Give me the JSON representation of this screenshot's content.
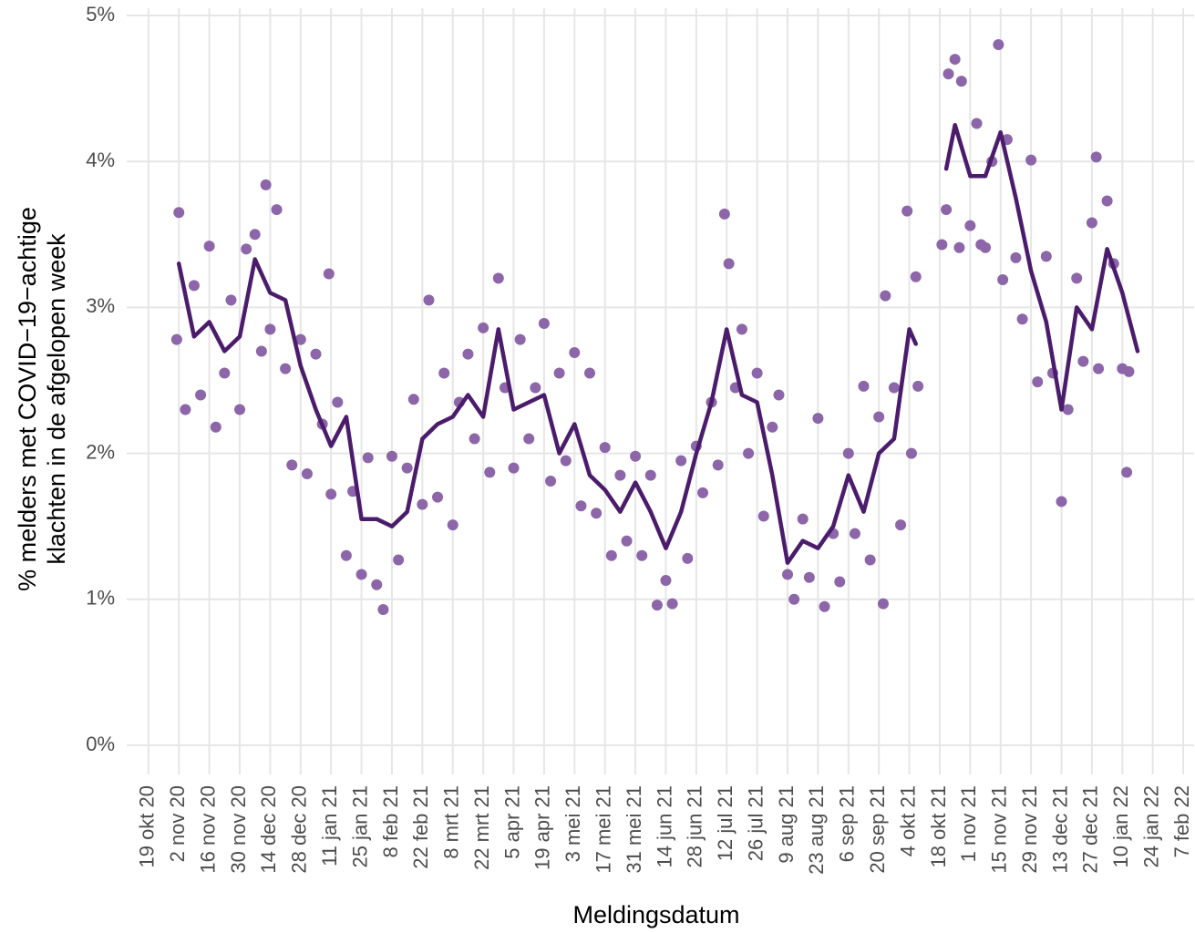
{
  "chart_data": {
    "type": "line",
    "x_label": "Meldingsdatum",
    "y_label": [
      "% melders met COVID−19−achtige",
      "klachten in de afgelopen week"
    ],
    "xlim": [
      "2020-10-09",
      "2022-02-12"
    ],
    "ylim": [
      -0.2,
      5.05
    ],
    "grid": true,
    "yticks": [
      {
        "value": 0,
        "label": "0%"
      },
      {
        "value": 1,
        "label": "1%"
      },
      {
        "value": 2,
        "label": "2%"
      },
      {
        "value": 3,
        "label": "3%"
      },
      {
        "value": 4,
        "label": "4%"
      },
      {
        "value": 5,
        "label": "5%"
      }
    ],
    "xticks": [
      {
        "value": "2020-10-19",
        "label": "19 okt 20"
      },
      {
        "value": "2020-11-02",
        "label": "2 nov 20"
      },
      {
        "value": "2020-11-16",
        "label": "16 nov 20"
      },
      {
        "value": "2020-11-30",
        "label": "30 nov 20"
      },
      {
        "value": "2020-12-14",
        "label": "14 dec 20"
      },
      {
        "value": "2020-12-28",
        "label": "28 dec 20"
      },
      {
        "value": "2021-01-11",
        "label": "11 jan 21"
      },
      {
        "value": "2021-01-25",
        "label": "25 jan 21"
      },
      {
        "value": "2021-02-08",
        "label": "8 feb 21"
      },
      {
        "value": "2021-02-22",
        "label": "22 feb 21"
      },
      {
        "value": "2021-03-08",
        "label": "8 mrt 21"
      },
      {
        "value": "2021-03-22",
        "label": "22 mrt 21"
      },
      {
        "value": "2021-04-05",
        "label": "5 apr 21"
      },
      {
        "value": "2021-04-19",
        "label": "19 apr 21"
      },
      {
        "value": "2021-05-03",
        "label": "3 mei 21"
      },
      {
        "value": "2021-05-17",
        "label": "17 mei 21"
      },
      {
        "value": "2021-05-31",
        "label": "31 mei 21"
      },
      {
        "value": "2021-06-14",
        "label": "14 jun 21"
      },
      {
        "value": "2021-06-28",
        "label": "28 jun 21"
      },
      {
        "value": "2021-07-12",
        "label": "12 jul 21"
      },
      {
        "value": "2021-07-26",
        "label": "26 jul 21"
      },
      {
        "value": "2021-08-09",
        "label": "9 aug 21"
      },
      {
        "value": "2021-08-23",
        "label": "23 aug 21"
      },
      {
        "value": "2021-09-06",
        "label": "6 sep 21"
      },
      {
        "value": "2021-09-20",
        "label": "20 sep 21"
      },
      {
        "value": "2021-10-04",
        "label": "4 okt 21"
      },
      {
        "value": "2021-10-18",
        "label": "18 okt 21"
      },
      {
        "value": "2021-11-01",
        "label": "1 nov 21"
      },
      {
        "value": "2021-11-15",
        "label": "15 nov 21"
      },
      {
        "value": "2021-11-29",
        "label": "29 nov 21"
      },
      {
        "value": "2021-12-13",
        "label": "13 dec 21"
      },
      {
        "value": "2021-12-27",
        "label": "27 dec 21"
      },
      {
        "value": "2022-01-10",
        "label": "10 jan 22"
      },
      {
        "value": "2022-01-24",
        "label": "24 jan 22"
      },
      {
        "value": "2022-02-07",
        "label": "7 feb 22"
      }
    ],
    "series": [
      {
        "type": "scatter",
        "color": "#8c66a8",
        "x": [
          "2020-11-01",
          "2020-11-02",
          "2020-11-05",
          "2020-11-09",
          "2020-11-12",
          "2020-11-16",
          "2020-11-19",
          "2020-11-23",
          "2020-11-26",
          "2020-11-30",
          "2020-12-03",
          "2020-12-07",
          "2020-12-10",
          "2020-12-12",
          "2020-12-14",
          "2020-12-17",
          "2020-12-21",
          "2020-12-24",
          "2020-12-28",
          "2020-12-31",
          "2021-01-04",
          "2021-01-07",
          "2021-01-10",
          "2021-01-11",
          "2021-01-14",
          "2021-01-18",
          "2021-01-21",
          "2021-01-25",
          "2021-01-28",
          "2021-02-01",
          "2021-02-04",
          "2021-02-08",
          "2021-02-11",
          "2021-02-15",
          "2021-02-18",
          "2021-02-22",
          "2021-02-25",
          "2021-03-01",
          "2021-03-04",
          "2021-03-08",
          "2021-03-11",
          "2021-03-15",
          "2021-03-18",
          "2021-03-22",
          "2021-03-25",
          "2021-03-29",
          "2021-04-01",
          "2021-04-05",
          "2021-04-08",
          "2021-04-12",
          "2021-04-15",
          "2021-04-19",
          "2021-04-22",
          "2021-04-26",
          "2021-04-29",
          "2021-05-03",
          "2021-05-06",
          "2021-05-10",
          "2021-05-13",
          "2021-05-17",
          "2021-05-20",
          "2021-05-24",
          "2021-05-27",
          "2021-05-31",
          "2021-06-03",
          "2021-06-07",
          "2021-06-10",
          "2021-06-14",
          "2021-06-17",
          "2021-06-21",
          "2021-06-24",
          "2021-06-28",
          "2021-07-01",
          "2021-07-05",
          "2021-07-08",
          "2021-07-11",
          "2021-07-13",
          "2021-07-16",
          "2021-07-19",
          "2021-07-22",
          "2021-07-26",
          "2021-07-29",
          "2021-08-02",
          "2021-08-05",
          "2021-08-09",
          "2021-08-12",
          "2021-08-16",
          "2021-08-19",
          "2021-08-23",
          "2021-08-26",
          "2021-08-30",
          "2021-09-02",
          "2021-09-06",
          "2021-09-09",
          "2021-09-13",
          "2021-09-16",
          "2021-09-20",
          "2021-09-22",
          "2021-09-23",
          "2021-09-27",
          "2021-09-30",
          "2021-10-03",
          "2021-10-05",
          "2021-10-07",
          "2021-10-08",
          "2021-10-19",
          "2021-10-21",
          "2021-10-22",
          "2021-10-25",
          "2021-10-27",
          "2021-10-28",
          "2021-11-01",
          "2021-11-04",
          "2021-11-06",
          "2021-11-08",
          "2021-11-11",
          "2021-11-14",
          "2021-11-16",
          "2021-11-18",
          "2021-11-22",
          "2021-11-25",
          "2021-11-29",
          "2021-12-02",
          "2021-12-06",
          "2021-12-09",
          "2021-12-13",
          "2021-12-16",
          "2021-12-20",
          "2021-12-23",
          "2021-12-27",
          "2021-12-29",
          "2021-12-30",
          "2022-01-03",
          "2022-01-06",
          "2022-01-10",
          "2022-01-12",
          "2022-01-13"
        ],
        "values": [
          2.78,
          3.65,
          2.3,
          3.15,
          2.4,
          3.42,
          2.18,
          2.55,
          3.05,
          2.3,
          3.4,
          3.5,
          2.7,
          3.84,
          2.85,
          3.67,
          2.58,
          1.92,
          2.78,
          1.86,
          2.68,
          2.2,
          3.23,
          1.72,
          2.35,
          1.3,
          1.74,
          1.17,
          1.97,
          1.1,
          0.93,
          1.98,
          1.27,
          1.9,
          2.37,
          1.65,
          3.05,
          1.7,
          2.55,
          1.51,
          2.35,
          2.68,
          2.1,
          2.86,
          1.87,
          3.2,
          2.45,
          1.9,
          2.78,
          2.1,
          2.45,
          2.89,
          1.81,
          2.55,
          1.95,
          2.69,
          1.64,
          2.55,
          1.59,
          2.04,
          1.3,
          1.85,
          1.4,
          1.98,
          1.3,
          1.85,
          0.96,
          1.13,
          0.97,
          1.95,
          1.28,
          2.05,
          1.73,
          2.35,
          1.92,
          3.64,
          3.3,
          2.45,
          2.85,
          2.0,
          2.55,
          1.57,
          2.18,
          2.4,
          1.17,
          1.0,
          1.55,
          1.15,
          2.24,
          0.95,
          1.45,
          1.12,
          2.0,
          1.45,
          2.46,
          1.27,
          2.25,
          0.97,
          3.08,
          2.45,
          1.51,
          3.66,
          2.0,
          3.21,
          2.46,
          3.43,
          3.67,
          4.6,
          4.7,
          3.41,
          4.55,
          3.56,
          4.26,
          3.43,
          3.41,
          4.0,
          4.8,
          3.19,
          4.15,
          3.34,
          2.92,
          4.01,
          2.49,
          3.35,
          2.55,
          1.67,
          2.3,
          3.2,
          2.63,
          3.58,
          4.03,
          2.58,
          3.73,
          3.3,
          2.58,
          1.87,
          2.56
        ]
      },
      {
        "type": "line",
        "color": "#4b1c6c",
        "x": [
          "2020-11-02",
          "2020-11-09",
          "2020-11-16",
          "2020-11-23",
          "2020-11-30",
          "2020-12-07",
          "2020-12-14",
          "2020-12-21",
          "2020-12-28",
          "2021-01-04",
          "2021-01-11",
          "2021-01-18",
          "2021-01-25",
          "2021-02-01",
          "2021-02-08",
          "2021-02-15",
          "2021-02-22",
          "2021-03-01",
          "2021-03-08",
          "2021-03-15",
          "2021-03-22",
          "2021-03-29",
          "2021-04-05",
          "2021-04-12",
          "2021-04-19",
          "2021-04-26",
          "2021-05-03",
          "2021-05-10",
          "2021-05-17",
          "2021-05-24",
          "2021-05-31",
          "2021-06-07",
          "2021-06-14",
          "2021-06-21",
          "2021-06-28",
          "2021-07-05",
          "2021-07-12",
          "2021-07-19",
          "2021-07-26",
          "2021-08-02",
          "2021-08-09",
          "2021-08-16",
          "2021-08-23",
          "2021-08-30",
          "2021-09-06",
          "2021-09-13",
          "2021-09-20",
          "2021-09-27",
          "2021-10-04",
          "2021-10-07",
          "2021-10-14",
          "2021-10-21",
          "2021-10-25",
          "2021-11-01",
          "2021-11-08",
          "2021-11-15",
          "2021-11-22",
          "2021-11-29",
          "2021-12-06",
          "2021-12-13",
          "2021-12-20",
          "2021-12-27",
          "2022-01-03",
          "2022-01-10",
          "2022-01-17"
        ],
        "values": [
          3.3,
          2.8,
          2.9,
          2.7,
          2.8,
          3.33,
          3.1,
          3.05,
          2.6,
          2.3,
          2.05,
          2.25,
          1.55,
          1.55,
          1.5,
          1.6,
          2.1,
          2.2,
          2.25,
          2.4,
          2.25,
          2.85,
          2.3,
          2.35,
          2.4,
          2.0,
          2.2,
          1.85,
          1.75,
          1.6,
          1.8,
          1.6,
          1.35,
          1.6,
          2.0,
          2.35,
          2.85,
          2.4,
          2.35,
          1.85,
          1.25,
          1.4,
          1.35,
          1.5,
          1.85,
          1.6,
          2.0,
          2.1,
          2.85,
          2.75,
          null,
          3.95,
          4.25,
          3.9,
          3.9,
          4.2,
          3.75,
          3.25,
          2.9,
          2.3,
          3.0,
          2.85,
          3.4,
          3.1,
          2.7
        ]
      }
    ]
  }
}
